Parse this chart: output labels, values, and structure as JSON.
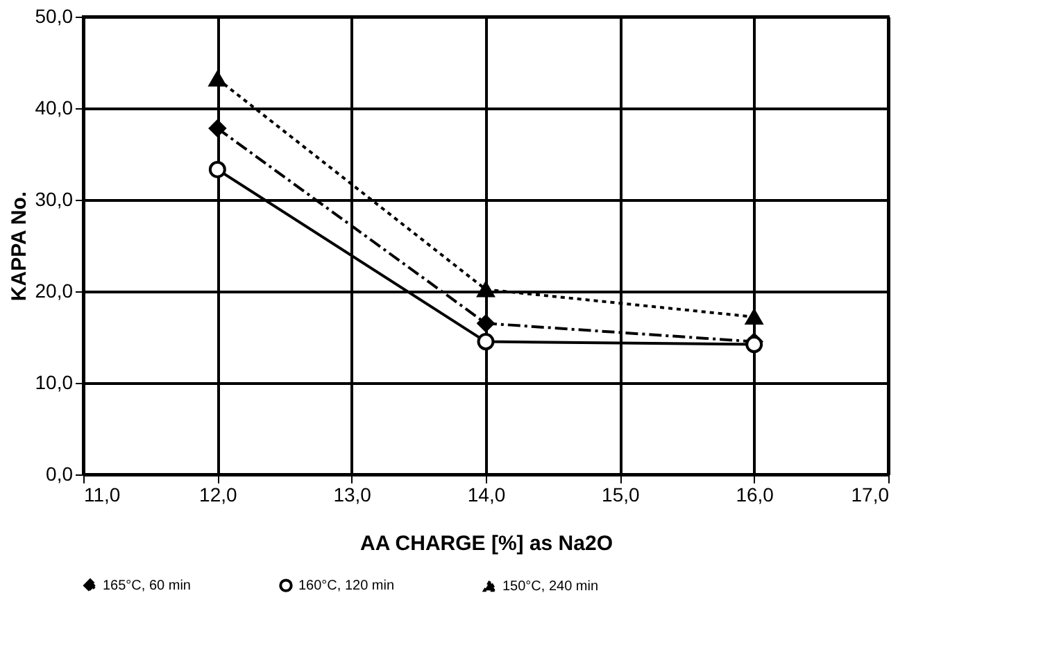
{
  "chart_data": {
    "type": "line",
    "xlabel": "AA CHARGE [%] as Na2O",
    "ylabel": "KAPPA No.",
    "xlim": [
      11,
      17
    ],
    "ylim": [
      0,
      50
    ],
    "xticks": [
      {
        "value": 11,
        "label": "11,0"
      },
      {
        "value": 12,
        "label": "12,0"
      },
      {
        "value": 13,
        "label": "13,0"
      },
      {
        "value": 14,
        "label": "14,0"
      },
      {
        "value": 15,
        "label": "15,0"
      },
      {
        "value": 16,
        "label": "16,0"
      },
      {
        "value": 17,
        "label": "17,0"
      }
    ],
    "yticks": [
      {
        "value": 0,
        "label": "0,0"
      },
      {
        "value": 10,
        "label": "10,0"
      },
      {
        "value": 20,
        "label": "20,0"
      },
      {
        "value": 30,
        "label": "30,0"
      },
      {
        "value": 40,
        "label": "40,0"
      },
      {
        "value": 50,
        "label": "50,0"
      }
    ],
    "x": [
      12,
      14,
      16
    ],
    "grid": true,
    "legend": "bottom",
    "series": [
      {
        "name": "165°C, 60 min",
        "color": "#000000",
        "values": [
          37.8,
          16.5,
          14.5
        ],
        "marker": "diamond",
        "line_style": "dashed"
      },
      {
        "name": "160°C, 120 min",
        "color": "#000000",
        "values": [
          33.3,
          14.5,
          14.2
        ],
        "marker": "circle",
        "line_style": "solid"
      },
      {
        "name": "150°C, 240 min",
        "color": "#000000",
        "values": [
          43.2,
          20.2,
          17.2
        ],
        "marker": "triangle",
        "line_style": "dotted"
      }
    ]
  }
}
